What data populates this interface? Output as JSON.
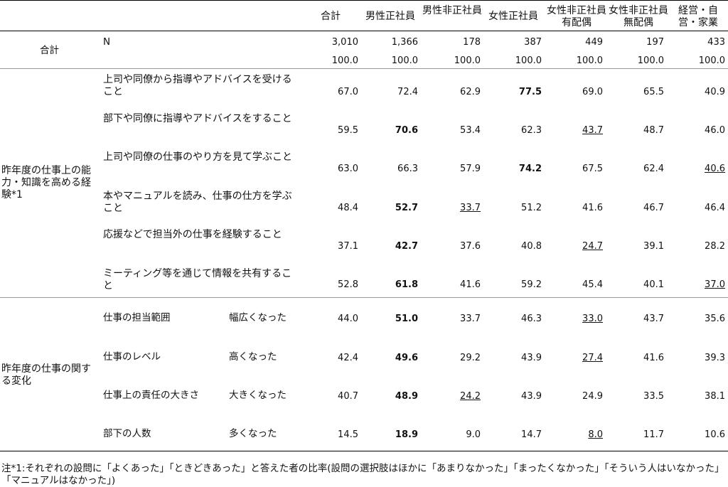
{
  "columns": [
    "合計",
    "男性正社員",
    "男性非正社員",
    "女性正社員",
    "女性非正社員有配偶",
    "女性非正社員無配偶",
    "経営・自営・家業"
  ],
  "total_row": {
    "label": "合計",
    "n_label": "N",
    "n_values": [
      "3,010",
      "1,366",
      "178",
      "387",
      "449",
      "197",
      "433"
    ],
    "pct_values": [
      "100.0",
      "100.0",
      "100.0",
      "100.0",
      "100.0",
      "100.0",
      "100.0"
    ]
  },
  "section1": {
    "label": "昨年度の仕事上の能力・知識を高める経験*1",
    "rows": [
      {
        "label": "上司や同僚から指導やアドバイスを受けること",
        "values": [
          "67.0",
          "72.4",
          "62.9",
          "77.5",
          "69.0",
          "65.5",
          "40.9"
        ]
      },
      {
        "label": "部下や同僚に指導やアドバイスをすること",
        "values": [
          "59.5",
          "70.6",
          "53.4",
          "62.3",
          "43.7",
          "48.7",
          "46.0"
        ]
      },
      {
        "label": "上司や同僚の仕事のやり方を見て学ぶこと",
        "values": [
          "63.0",
          "66.3",
          "57.9",
          "74.2",
          "67.5",
          "62.4",
          "40.6"
        ]
      },
      {
        "label": "本やマニュアルを読み、仕事の仕方を学ぶこと",
        "values": [
          "48.4",
          "52.7",
          "33.7",
          "51.2",
          "41.6",
          "46.7",
          "46.4"
        ]
      },
      {
        "label": "応援などで担当外の仕事を経験すること",
        "values": [
          "37.1",
          "42.7",
          "37.6",
          "40.8",
          "24.7",
          "39.1",
          "28.2"
        ]
      },
      {
        "label": "ミーティング等を通じて情報を共有すること",
        "values": [
          "52.8",
          "61.8",
          "41.6",
          "59.2",
          "45.4",
          "40.1",
          "37.0"
        ]
      }
    ]
  },
  "section2": {
    "label": "昨年度の仕事の関する変化",
    "rows": [
      {
        "label": "仕事の担当範囲",
        "sub": "幅広くなった",
        "values": [
          "44.0",
          "51.0",
          "33.7",
          "46.3",
          "33.0",
          "43.7",
          "35.6"
        ]
      },
      {
        "label": "仕事のレベル",
        "sub": "高くなった",
        "values": [
          "42.4",
          "49.6",
          "29.2",
          "43.9",
          "27.4",
          "41.6",
          "39.3"
        ]
      },
      {
        "label": "仕事上の責任の大きさ",
        "sub": "大きくなった",
        "values": [
          "40.7",
          "48.9",
          "24.2",
          "43.9",
          "24.9",
          "33.5",
          "38.1"
        ]
      },
      {
        "label": "部下の人数",
        "sub": "多くなった",
        "values": [
          "14.5",
          "18.9",
          "9.0",
          "14.7",
          "8.0",
          "11.7",
          "10.6"
        ]
      }
    ]
  },
  "note": "注*1:それぞれの設問に「よくあった」「ときどきあった」と答えた者の比率(設問の選択肢はほかに「あまりなかった」「まったくなかった」「そういう人はいなかった」「マニュアルはなかった」)"
}
